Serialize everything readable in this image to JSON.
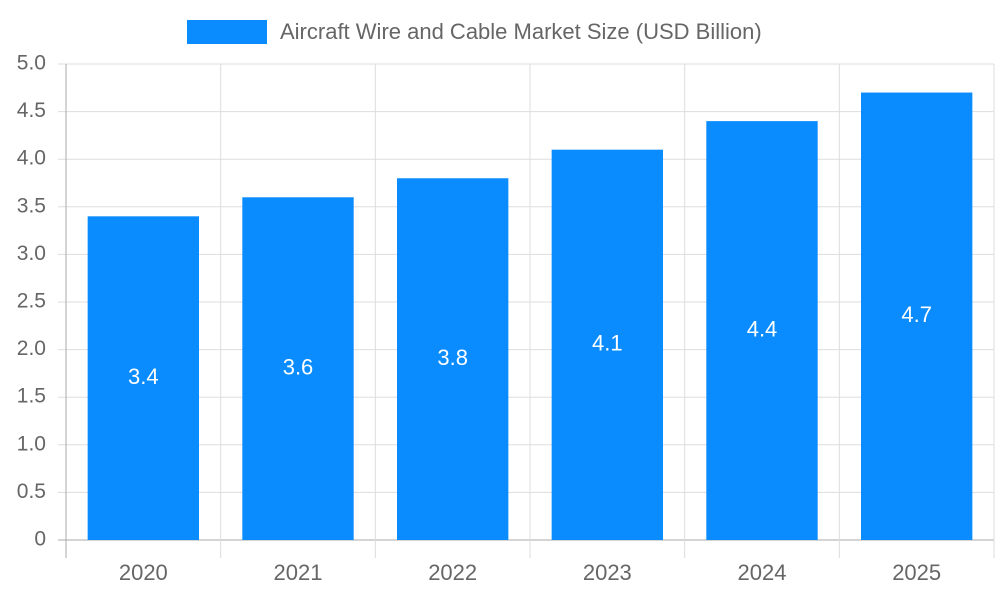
{
  "chart_data": {
    "type": "bar",
    "series": [
      {
        "name": "Aircraft Wire and Cable Market Size (USD Billion)",
        "color": "#0a8cff",
        "values": [
          3.4,
          3.6,
          3.8,
          4.1,
          4.4,
          4.7
        ]
      }
    ],
    "categories": [
      "2020",
      "2021",
      "2022",
      "2023",
      "2024",
      "2025"
    ],
    "ylim": [
      0,
      5
    ],
    "yticks": [
      0,
      {
        "value": 0.5,
        "label": "0.5"
      },
      {
        "value": 1,
        "label": "1.0"
      },
      {
        "value": 1.5,
        "label": "1.5"
      },
      {
        "value": 2,
        "label": "2.0"
      },
      {
        "value": 2.5,
        "label": "2.5"
      },
      {
        "value": 3,
        "label": "3.0"
      },
      {
        "value": 3.5,
        "label": "3.5"
      },
      {
        "value": 4,
        "label": "4.0"
      },
      {
        "value": 4.5,
        "label": "4.5"
      },
      {
        "value": 5,
        "label": "5.0"
      }
    ],
    "grid": true,
    "legend": "top"
  }
}
